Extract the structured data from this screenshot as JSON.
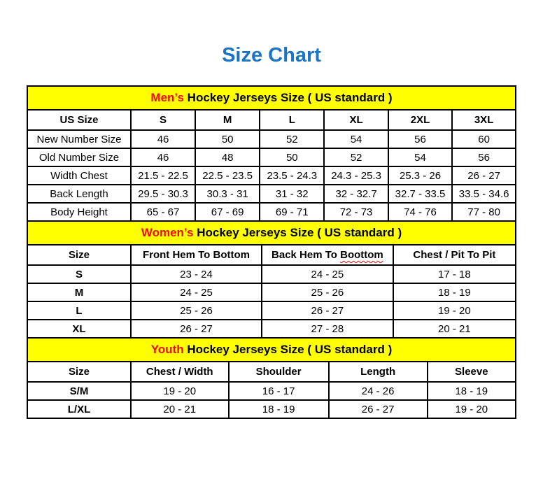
{
  "page": {
    "title": "Size Chart"
  },
  "colors": {
    "title_blue": "#1B74C5",
    "accent_red": "#EE0B0B",
    "banner_yellow": "#FFFF00",
    "border_black": "#000000"
  },
  "tables": [
    {
      "name": "mens",
      "banner": {
        "highlight": "Men’s",
        "rest": " Hockey Jerseys Size ( US standard )"
      },
      "columns": [
        "US Size",
        "S",
        "M",
        "L",
        "XL",
        "2XL",
        "3XL"
      ],
      "rows": [
        {
          "label": "New Number Size",
          "values": [
            "46",
            "50",
            "52",
            "54",
            "56",
            "60"
          ]
        },
        {
          "label": "Old Number Size",
          "values": [
            "46",
            "48",
            "50",
            "52",
            "54",
            "56"
          ]
        },
        {
          "label": "Width Chest",
          "values": [
            "21.5 - 22.5",
            "22.5 - 23.5",
            "23.5 - 24.3",
            "24.3 - 25.3",
            "25.3 - 26",
            "26 - 27"
          ]
        },
        {
          "label": "Back Length",
          "values": [
            "29.5 - 30.3",
            "30.3 - 31",
            "31 - 32",
            "32 - 32.7",
            "32.7 - 33.5",
            "33.5 - 34.6"
          ]
        },
        {
          "label": "Body Height",
          "values": [
            "65 - 67",
            "67 - 69",
            "69 - 71",
            "72 - 73",
            "74 - 76",
            "77 - 80"
          ]
        }
      ]
    },
    {
      "name": "womens",
      "banner": {
        "highlight": "Women’s",
        "rest": " Hockey Jerseys Size ( US standard )"
      },
      "columns": [
        "Size",
        "Front Hem To Bottom",
        "Back Hem To Boottom",
        "Chest / Pit To Pit"
      ],
      "spellcheck": {
        "column_index": 2,
        "word": "Boottom"
      },
      "rows": [
        {
          "label": "S",
          "values": [
            "23 - 24",
            "24 - 25",
            "17 - 18"
          ]
        },
        {
          "label": "M",
          "values": [
            "24 - 25",
            "25 - 26",
            "18 - 19"
          ]
        },
        {
          "label": "L",
          "values": [
            "25 - 26",
            "26 - 27",
            "19 - 20"
          ]
        },
        {
          "label": "XL",
          "values": [
            "26 - 27",
            "27 - 28",
            "20 - 21"
          ]
        }
      ]
    },
    {
      "name": "youth",
      "banner": {
        "highlight": "Youth",
        "rest": " Hockey Jerseys Size ( US standard )"
      },
      "columns": [
        "Size",
        "Chest / Width",
        "Shoulder",
        "Length",
        "Sleeve"
      ],
      "rows": [
        {
          "label": "S/M",
          "values": [
            "19 - 20",
            "16 - 17",
            "24 - 26",
            "18 - 19"
          ]
        },
        {
          "label": "L/XL",
          "values": [
            "20 - 21",
            "18 - 19",
            "26 - 27",
            "19 - 20"
          ]
        }
      ]
    }
  ]
}
